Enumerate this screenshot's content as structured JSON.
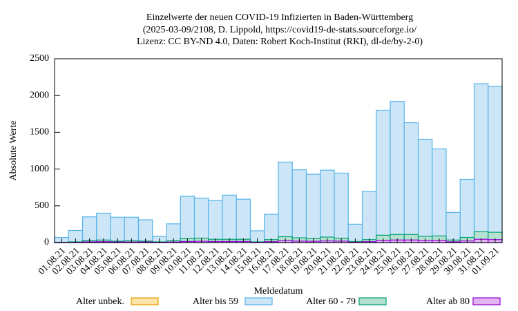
{
  "chart_data": {
    "type": "bar",
    "title": [
      "Einzelwerte der neuen COVID-19 Infizierten in Baden-Württemberg",
      "(2025-03-09/2108, D. Lippold, https://covid19-de-stats.sourceforge.io/",
      "Lizenz: CC BY-ND 4.0, Daten: Robert Koch-Institut (RKI), dl-de/by-2-0)"
    ],
    "x_label": "Meldedatum",
    "y_label": "Absolute Werte",
    "categories": [
      "01.08.21",
      "02.08.21",
      "03.08.21",
      "04.08.21",
      "05.08.21",
      "06.08.21",
      "07.08.21",
      "08.08.21",
      "09.08.21",
      "10.08.21",
      "11.08.21",
      "12.08.21",
      "13.08.21",
      "14.08.21",
      "15.08.21",
      "16.08.21",
      "17.08.21",
      "18.08.21",
      "19.08.21",
      "20.08.21",
      "21.08.21",
      "22.08.21",
      "23.08.21",
      "24.08.21",
      "25.08.21",
      "26.08.21",
      "27.08.21",
      "28.08.21",
      "29.08.21",
      "30.08.21",
      "31.08.21",
      "01.09.21"
    ],
    "series": [
      {
        "name": "Alter unbek.",
        "color": "#e69f00",
        "fill": "#fde4a8",
        "values": [
          0,
          0,
          0,
          0,
          0,
          0,
          0,
          0,
          0,
          0,
          0,
          0,
          0,
          0,
          0,
          0,
          0,
          0,
          0,
          0,
          0,
          0,
          0,
          0,
          0,
          0,
          0,
          0,
          0,
          0,
          0,
          0
        ]
      },
      {
        "name": "Alter bis 59",
        "color": "#56b4e9",
        "fill": "#cce6f8",
        "values": [
          70,
          165,
          350,
          400,
          345,
          345,
          310,
          85,
          255,
          630,
          605,
          570,
          645,
          590,
          160,
          385,
          1095,
          990,
          930,
          985,
          945,
          250,
          695,
          1800,
          1920,
          1630,
          1405,
          1275,
          410,
          860,
          2160,
          2125
        ]
      },
      {
        "name": "Alter 60 - 79",
        "color": "#009e73",
        "fill": "#b3e2d0",
        "values": [
          5,
          10,
          30,
          35,
          20,
          25,
          20,
          10,
          25,
          55,
          60,
          45,
          45,
          45,
          10,
          40,
          80,
          65,
          55,
          75,
          60,
          15,
          40,
          100,
          110,
          110,
          85,
          90,
          35,
          70,
          150,
          140
        ]
      },
      {
        "name": "Alter ab 80",
        "color": "#9400d3",
        "fill": "#e2b4f2",
        "values": [
          2,
          3,
          10,
          12,
          8,
          8,
          8,
          3,
          8,
          15,
          18,
          15,
          15,
          15,
          3,
          12,
          25,
          20,
          18,
          22,
          20,
          5,
          12,
          30,
          35,
          35,
          28,
          30,
          10,
          22,
          45,
          40
        ]
      }
    ],
    "ylim": [
      0,
      2500
    ],
    "yticks": [
      0,
      500,
      1000,
      1500,
      2000,
      2500
    ]
  }
}
